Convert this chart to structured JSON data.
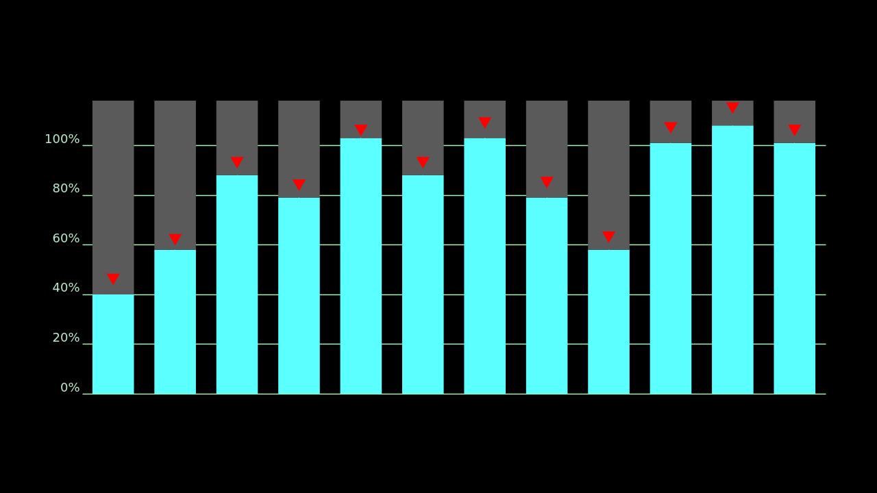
{
  "chart_data": {
    "type": "bar",
    "stacked": true,
    "categories": [
      null,
      null,
      null,
      null,
      null,
      null,
      null,
      null,
      null,
      null,
      null,
      null
    ],
    "series": [
      {
        "color": "#5cffff",
        "values": [
          40,
          58,
          88,
          79,
          103,
          88,
          103,
          79,
          58,
          101,
          108,
          101
        ]
      },
      {
        "color": "#5a5a5a",
        "values": [
          78,
          60,
          30,
          39,
          15,
          30,
          15,
          39,
          60,
          17,
          10,
          17
        ]
      },
      {
        "type": "scatter",
        "color": "#ff0000",
        "values": [
          46,
          62,
          93,
          84,
          106,
          93,
          109,
          85,
          63,
          107,
          115,
          106
        ]
      }
    ],
    "marker": "triangle",
    "ylim": [
      0,
      118
    ],
    "yticks": [
      {
        "value": 0,
        "label": "0%"
      },
      {
        "value": 20,
        "label": "20%"
      },
      {
        "value": 40,
        "label": "40%"
      },
      {
        "value": 60,
        "label": "60%"
      },
      {
        "value": 80,
        "label": "80%"
      },
      {
        "value": 100,
        "label": "100%"
      }
    ],
    "grid": true,
    "tick_labels": "y"
  }
}
